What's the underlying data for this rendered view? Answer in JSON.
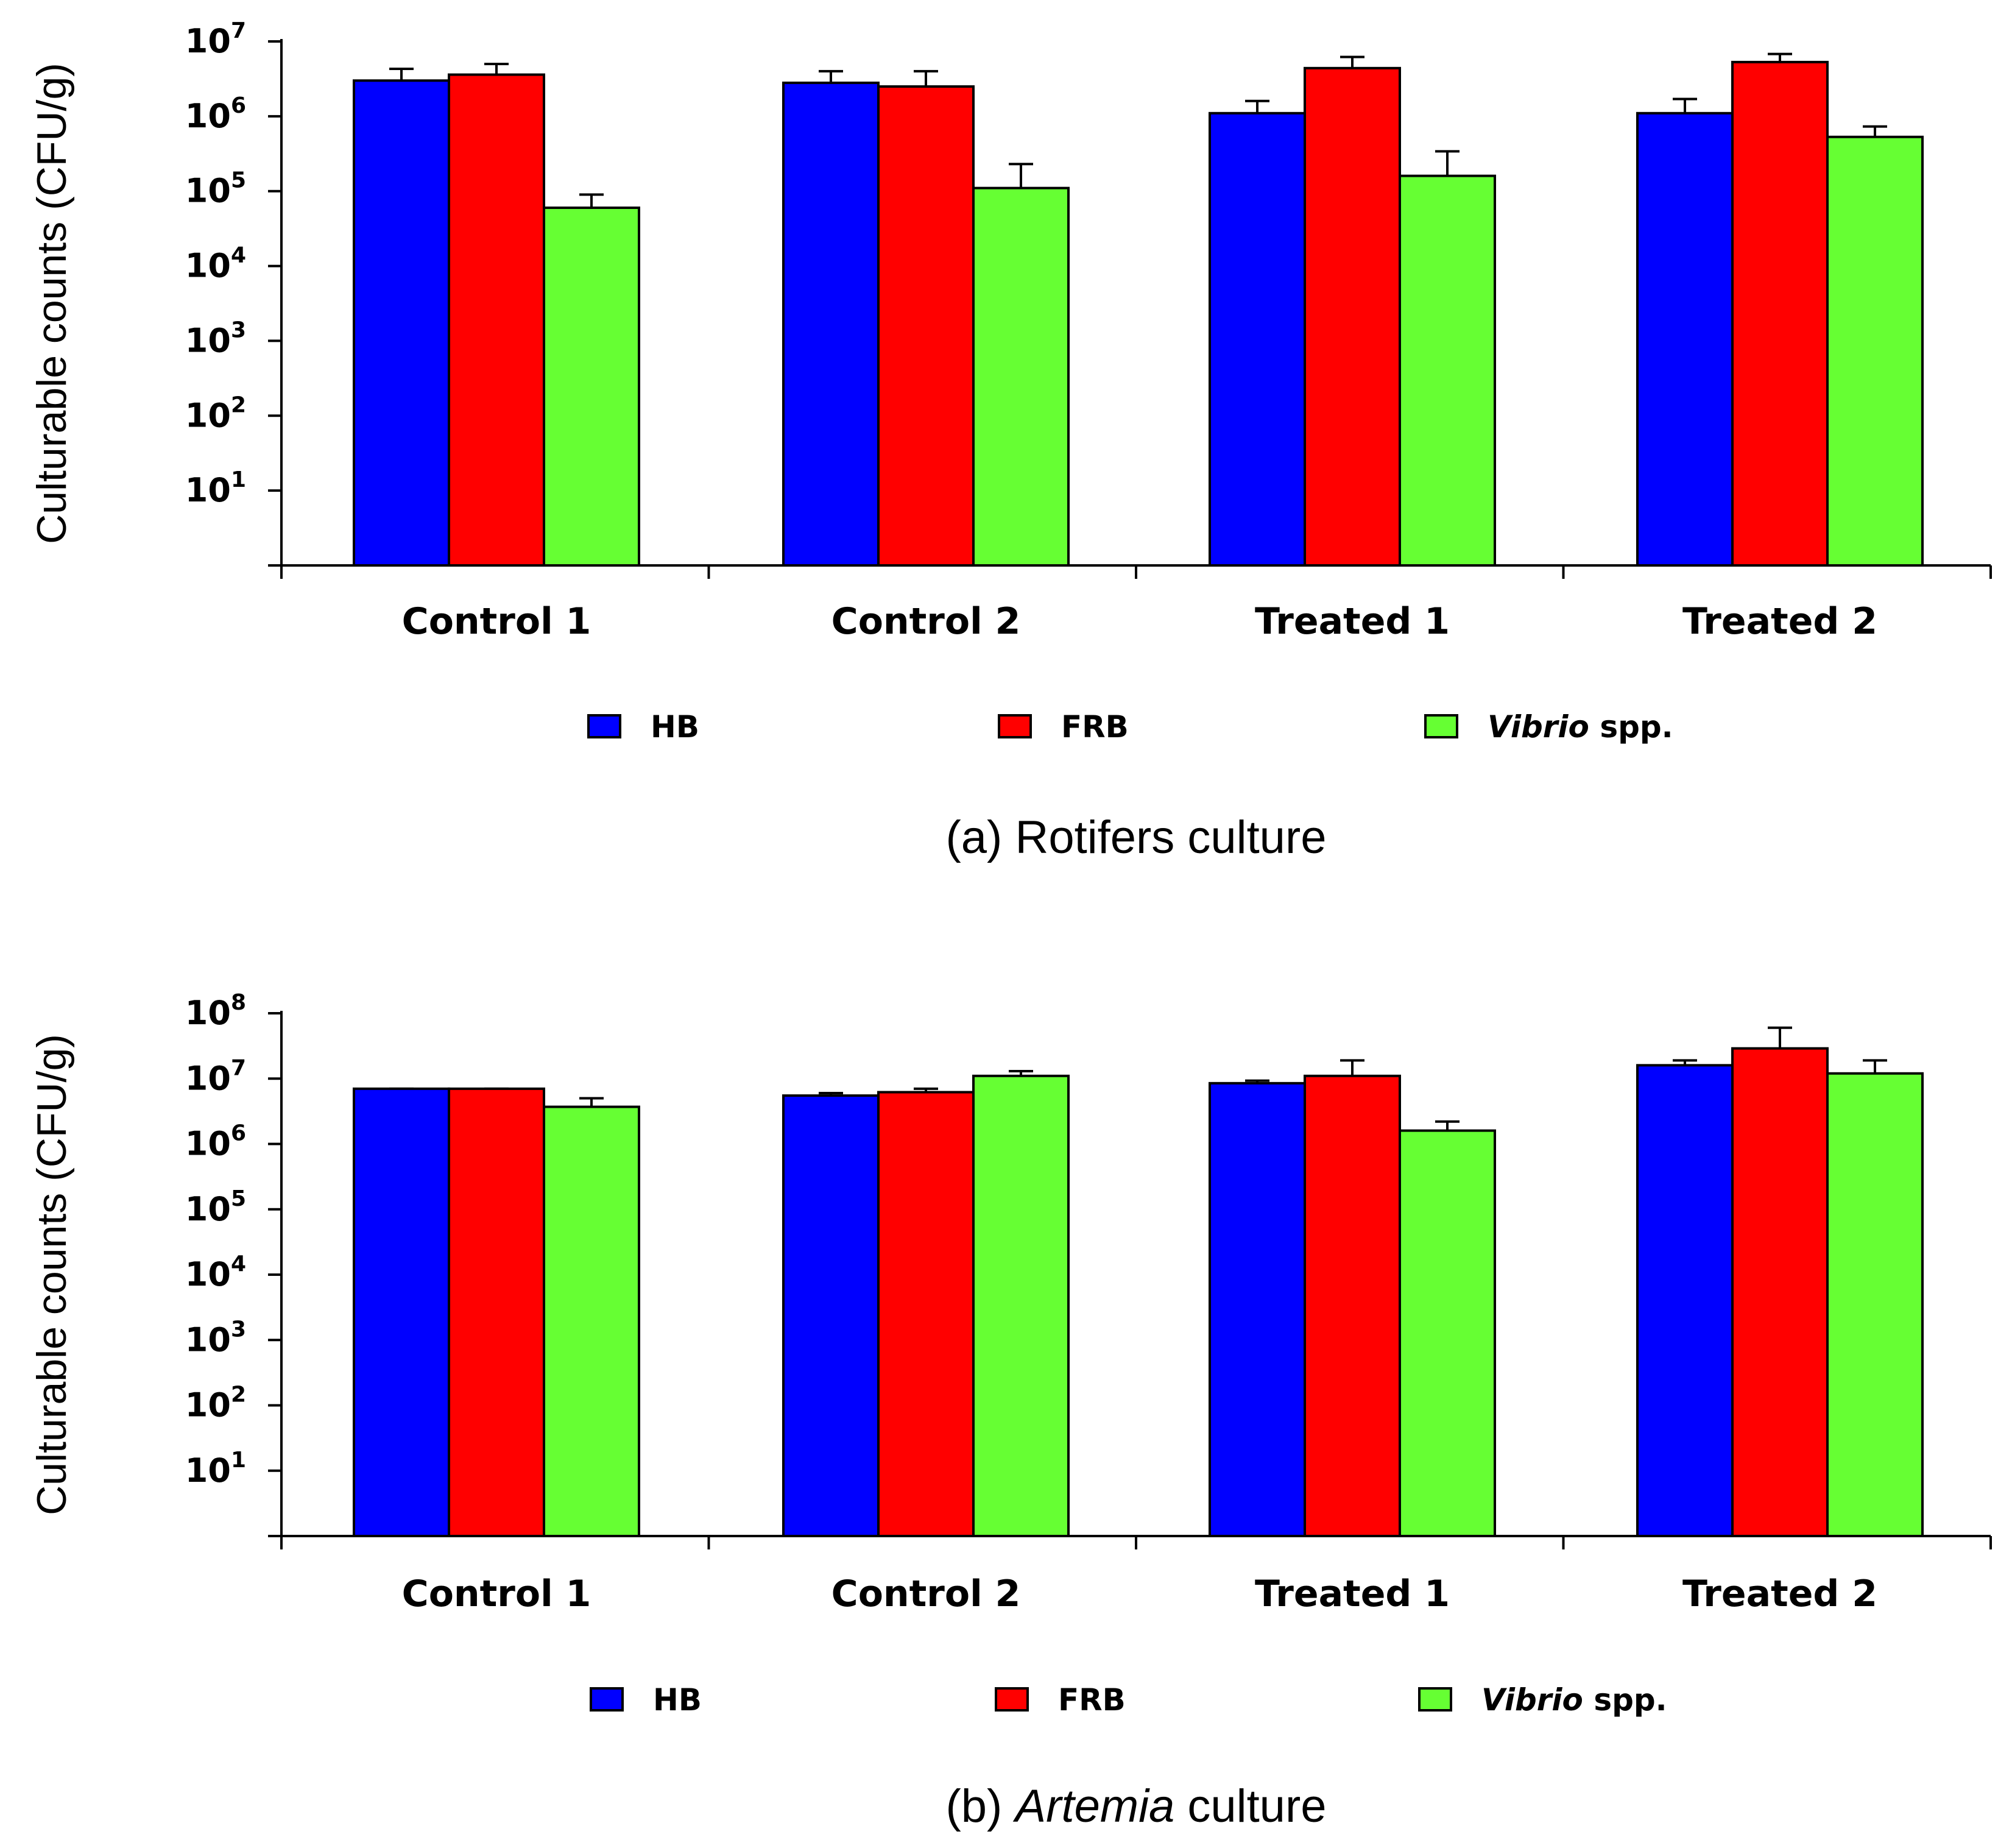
{
  "series_styles": [
    {
      "color": "#0000ff"
    },
    {
      "color": "#ff0000"
    },
    {
      "color": "#66ff33"
    }
  ],
  "chart_data": [
    {
      "type": "bar",
      "caption": {
        "prefix": "(a) Rotifers culture",
        "italic": "",
        "suffix": ""
      },
      "ylabel": "Culturable counts (CFU/g)",
      "yscale": "log",
      "ylim": [
        1,
        10000000
      ],
      "yticks": [
        {
          "base": "10",
          "exp": "1",
          "value": 10
        },
        {
          "base": "10",
          "exp": "2",
          "value": 100
        },
        {
          "base": "10",
          "exp": "3",
          "value": 1000
        },
        {
          "base": "10",
          "exp": "4",
          "value": 10000
        },
        {
          "base": "10",
          "exp": "5",
          "value": 100000
        },
        {
          "base": "10",
          "exp": "6",
          "value": 1000000
        },
        {
          "base": "10",
          "exp": "7",
          "value": 10000000
        }
      ],
      "categories": [
        "Control 1",
        "Control 2",
        "Treated 1",
        "Treated 2"
      ],
      "series": [
        {
          "name": "HB",
          "values": [
            3000000,
            2800000,
            1100000,
            1100000
          ],
          "errors": [
            4300000,
            4000000,
            1600000,
            1700000
          ]
        },
        {
          "name": "FRB",
          "values": [
            3600000,
            2500000,
            4400000,
            5300000
          ],
          "errors": [
            5000000,
            4000000,
            6200000,
            6800000
          ]
        },
        {
          "name": "Vibrio spp.",
          "values": [
            60000,
            110000,
            160000,
            530000
          ],
          "errors": [
            90000,
            230000,
            340000,
            730000
          ]
        }
      ],
      "legend": [
        {
          "italic": "",
          "text": "HB"
        },
        {
          "italic": "",
          "text": "FRB"
        },
        {
          "italic": "Vibrio",
          "text": " spp."
        }
      ],
      "legend_position": "bottom",
      "grid": false
    },
    {
      "type": "bar",
      "caption": {
        "prefix": "(b) ",
        "italic": "Artemia",
        "suffix": " culture"
      },
      "ylabel": "Culturable counts (CFU/g)",
      "yscale": "log",
      "ylim": [
        1,
        100000000
      ],
      "yticks": [
        {
          "base": "10",
          "exp": "1",
          "value": 10
        },
        {
          "base": "10",
          "exp": "2",
          "value": 100
        },
        {
          "base": "10",
          "exp": "3",
          "value": 1000
        },
        {
          "base": "10",
          "exp": "4",
          "value": 10000
        },
        {
          "base": "10",
          "exp": "5",
          "value": 100000
        },
        {
          "base": "10",
          "exp": "6",
          "value": 1000000
        },
        {
          "base": "10",
          "exp": "7",
          "value": 10000000
        },
        {
          "base": "10",
          "exp": "8",
          "value": 100000000
        }
      ],
      "categories": [
        "Control 1",
        "Control 2",
        "Treated 1",
        "Treated 2"
      ],
      "series": [
        {
          "name": "HB",
          "values": [
            7000000,
            5500000,
            8500000,
            16000000
          ],
          "errors": [
            7000000,
            6000000,
            9300000,
            19000000
          ]
        },
        {
          "name": "FRB",
          "values": [
            7000000,
            6200000,
            11000000,
            29000000
          ],
          "errors": [
            7000000,
            7000000,
            19000000,
            60000000
          ]
        },
        {
          "name": "Vibrio spp.",
          "values": [
            3700000,
            11000000,
            1600000,
            12000000
          ],
          "errors": [
            5000000,
            13000000,
            2200000,
            19000000
          ]
        }
      ],
      "legend": [
        {
          "italic": "",
          "text": "HB"
        },
        {
          "italic": "",
          "text": "FRB"
        },
        {
          "italic": "Vibrio",
          "text": " spp."
        }
      ],
      "legend_position": "bottom",
      "grid": false
    }
  ]
}
